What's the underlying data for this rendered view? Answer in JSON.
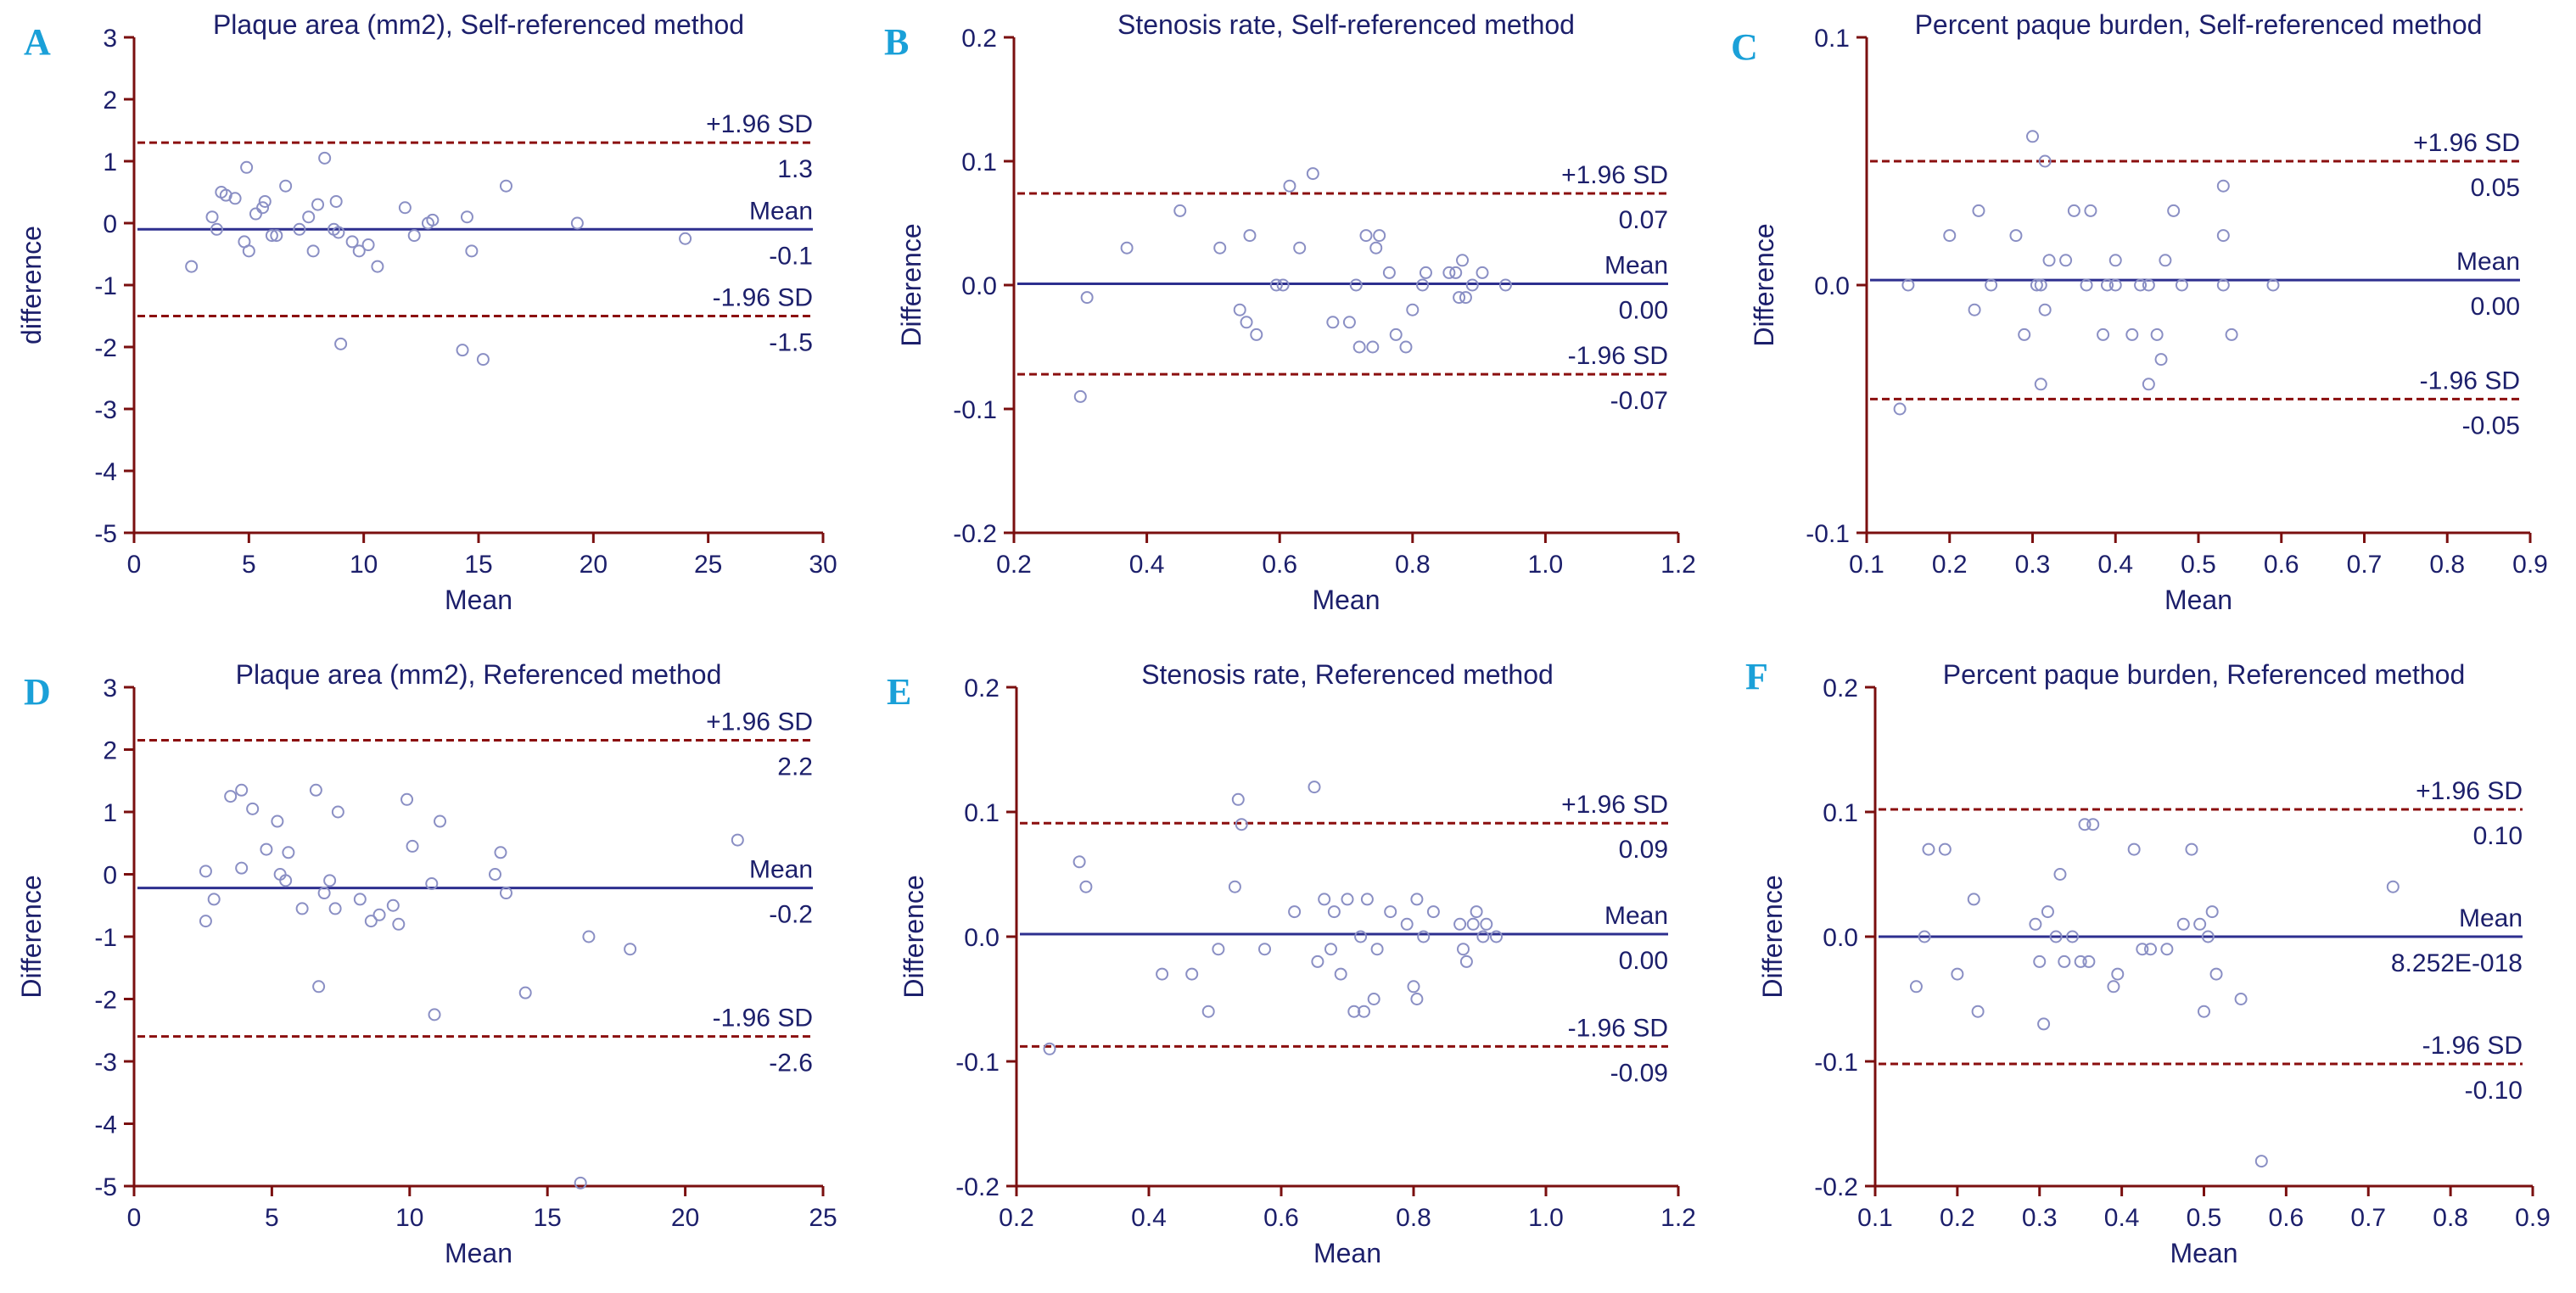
{
  "colors": {
    "axis": "#7a0f0f",
    "text": "#1c1f6b",
    "mean_line": "#2d2f8f",
    "sd_line": "#8b0f0f",
    "point": "#8a8fc4",
    "panel_label": "#1aa0d8"
  },
  "chart_data": [
    {
      "id": "A",
      "type": "scatter",
      "panel_label": "A",
      "title": "Plaque area (mm2), Self-referenced method",
      "xlabel": "Mean",
      "ylabel": "difference",
      "xlim": [
        0,
        30
      ],
      "ylim": [
        -5,
        3
      ],
      "xticks": [
        0,
        5,
        10,
        15,
        20,
        25,
        30
      ],
      "yticks": [
        -5,
        -4,
        -3,
        -2,
        -1,
        0,
        1,
        2,
        3
      ],
      "xtick_labels": [
        "0",
        "5",
        "10",
        "15",
        "20",
        "25",
        "30"
      ],
      "ytick_labels": [
        "-5",
        "-4",
        "-3",
        "-2",
        "-1",
        "0",
        "1",
        "2",
        "3"
      ],
      "lines": [
        {
          "kind": "upper",
          "y": 1.3,
          "name": "+1.96 SD",
          "value_label": "1.3"
        },
        {
          "kind": "mean",
          "y": -0.1,
          "name": "Mean",
          "value_label": "-0.1"
        },
        {
          "kind": "lower",
          "y": -1.5,
          "name": "-1.96 SD",
          "value_label": "-1.5"
        }
      ],
      "points": [
        [
          2.5,
          -0.7
        ],
        [
          3.4,
          0.1
        ],
        [
          3.6,
          -0.1
        ],
        [
          3.8,
          0.5
        ],
        [
          4.0,
          0.45
        ],
        [
          4.4,
          0.4
        ],
        [
          4.8,
          -0.3
        ],
        [
          4.9,
          0.9
        ],
        [
          5.0,
          -0.45
        ],
        [
          5.3,
          0.15
        ],
        [
          5.6,
          0.25
        ],
        [
          5.7,
          0.35
        ],
        [
          6.0,
          -0.2
        ],
        [
          6.2,
          -0.2
        ],
        [
          6.6,
          0.6
        ],
        [
          7.2,
          -0.1
        ],
        [
          7.6,
          0.1
        ],
        [
          7.8,
          -0.45
        ],
        [
          8.0,
          0.3
        ],
        [
          8.3,
          1.05
        ],
        [
          8.7,
          -0.1
        ],
        [
          8.8,
          0.35
        ],
        [
          8.9,
          -0.15
        ],
        [
          9.0,
          -1.95
        ],
        [
          9.5,
          -0.3
        ],
        [
          9.8,
          -0.45
        ],
        [
          10.2,
          -0.35
        ],
        [
          10.6,
          -0.7
        ],
        [
          11.8,
          0.25
        ],
        [
          12.2,
          -0.2
        ],
        [
          12.8,
          0.0
        ],
        [
          13.0,
          0.05
        ],
        [
          14.3,
          -2.05
        ],
        [
          14.5,
          0.1
        ],
        [
          14.7,
          -0.45
        ],
        [
          15.2,
          -2.2
        ],
        [
          16.2,
          0.6
        ],
        [
          19.3,
          0.0
        ],
        [
          24.0,
          -0.25
        ]
      ]
    },
    {
      "id": "B",
      "type": "scatter",
      "panel_label": "B",
      "title": "Stenosis rate, Self-referenced method",
      "xlabel": "Mean",
      "ylabel": "Difference",
      "xlim": [
        0.2,
        1.2
      ],
      "ylim": [
        -0.2,
        0.2
      ],
      "xticks": [
        0.2,
        0.4,
        0.6,
        0.8,
        1.0,
        1.2
      ],
      "yticks": [
        -0.2,
        -0.1,
        0.0,
        0.1,
        0.2
      ],
      "xtick_labels": [
        "0.2",
        "0.4",
        "0.6",
        "0.8",
        "1.0",
        "1.2"
      ],
      "ytick_labels": [
        "-0.2",
        "-0.1",
        "0.0",
        "0.1",
        "0.2"
      ],
      "lines": [
        {
          "kind": "upper",
          "y": 0.074,
          "name": "+1.96 SD",
          "value_label": "0.07"
        },
        {
          "kind": "mean",
          "y": 0.001,
          "name": "Mean",
          "value_label": "0.00"
        },
        {
          "kind": "lower",
          "y": -0.072,
          "name": "-1.96 SD",
          "value_label": "-0.07"
        }
      ],
      "points": [
        [
          0.3,
          -0.09
        ],
        [
          0.31,
          -0.01
        ],
        [
          0.37,
          0.03
        ],
        [
          0.45,
          0.06
        ],
        [
          0.51,
          0.03
        ],
        [
          0.54,
          -0.02
        ],
        [
          0.55,
          -0.03
        ],
        [
          0.555,
          0.04
        ],
        [
          0.565,
          -0.04
        ],
        [
          0.595,
          0.0
        ],
        [
          0.605,
          0.0
        ],
        [
          0.615,
          0.08
        ],
        [
          0.63,
          0.03
        ],
        [
          0.65,
          0.09
        ],
        [
          0.68,
          -0.03
        ],
        [
          0.705,
          -0.03
        ],
        [
          0.715,
          0.0
        ],
        [
          0.72,
          -0.05
        ],
        [
          0.73,
          0.04
        ],
        [
          0.74,
          -0.05
        ],
        [
          0.745,
          0.03
        ],
        [
          0.75,
          0.04
        ],
        [
          0.765,
          0.01
        ],
        [
          0.775,
          -0.04
        ],
        [
          0.79,
          -0.05
        ],
        [
          0.8,
          -0.02
        ],
        [
          0.815,
          0.0
        ],
        [
          0.82,
          0.01
        ],
        [
          0.855,
          0.01
        ],
        [
          0.865,
          0.01
        ],
        [
          0.87,
          -0.01
        ],
        [
          0.875,
          0.02
        ],
        [
          0.88,
          -0.01
        ],
        [
          0.89,
          0.0
        ],
        [
          0.905,
          0.01
        ],
        [
          0.94,
          0.0
        ]
      ]
    },
    {
      "id": "C",
      "type": "scatter",
      "panel_label": "C",
      "title": "Percent paque burden, Self-referenced method",
      "xlabel": "Mean",
      "ylabel": "Difference",
      "xlim": [
        0.1,
        0.9
      ],
      "ylim": [
        -0.1,
        0.1
      ],
      "xticks": [
        0.1,
        0.2,
        0.3,
        0.4,
        0.5,
        0.6,
        0.7,
        0.8,
        0.9
      ],
      "yticks": [
        -0.1,
        0.0,
        0.1
      ],
      "xtick_labels": [
        "0.1",
        "0.2",
        "0.3",
        "0.4",
        "0.5",
        "0.6",
        "0.7",
        "0.8",
        "0.9"
      ],
      "ytick_labels": [
        "-0.1",
        "0.0",
        "0.1"
      ],
      "lines": [
        {
          "kind": "upper",
          "y": 0.05,
          "name": "+1.96 SD",
          "value_label": "0.05"
        },
        {
          "kind": "mean",
          "y": 0.002,
          "name": "Mean",
          "value_label": "0.00"
        },
        {
          "kind": "lower",
          "y": -0.046,
          "name": "-1.96 SD",
          "value_label": "-0.05"
        }
      ],
      "points": [
        [
          0.14,
          -0.05
        ],
        [
          0.15,
          0.0
        ],
        [
          0.2,
          0.02
        ],
        [
          0.23,
          -0.01
        ],
        [
          0.235,
          0.03
        ],
        [
          0.25,
          0.0
        ],
        [
          0.28,
          0.02
        ],
        [
          0.29,
          -0.02
        ],
        [
          0.3,
          0.06
        ],
        [
          0.305,
          0.0
        ],
        [
          0.31,
          -0.04
        ],
        [
          0.31,
          0.0
        ],
        [
          0.315,
          0.05
        ],
        [
          0.315,
          -0.01
        ],
        [
          0.32,
          0.01
        ],
        [
          0.34,
          0.01
        ],
        [
          0.35,
          0.03
        ],
        [
          0.365,
          0.0
        ],
        [
          0.37,
          0.03
        ],
        [
          0.385,
          -0.02
        ],
        [
          0.39,
          0.0
        ],
        [
          0.4,
          0.01
        ],
        [
          0.4,
          0.0
        ],
        [
          0.42,
          -0.02
        ],
        [
          0.43,
          0.0
        ],
        [
          0.44,
          0.0
        ],
        [
          0.44,
          -0.04
        ],
        [
          0.45,
          -0.02
        ],
        [
          0.455,
          -0.03
        ],
        [
          0.46,
          0.01
        ],
        [
          0.47,
          0.03
        ],
        [
          0.48,
          0.0
        ],
        [
          0.53,
          0.04
        ],
        [
          0.53,
          0.02
        ],
        [
          0.53,
          0.0
        ],
        [
          0.54,
          -0.02
        ],
        [
          0.59,
          0.0
        ]
      ]
    },
    {
      "id": "D",
      "type": "scatter",
      "panel_label": "D",
      "title": "Plaque area (mm2), Referenced method",
      "xlabel": "Mean",
      "ylabel": "Difference",
      "xlim": [
        0,
        25
      ],
      "ylim": [
        -5,
        3
      ],
      "xticks": [
        0,
        5,
        10,
        15,
        20,
        25
      ],
      "yticks": [
        -5,
        -4,
        -3,
        -2,
        -1,
        0,
        1,
        2,
        3
      ],
      "xtick_labels": [
        "0",
        "5",
        "10",
        "15",
        "20",
        "25"
      ],
      "ytick_labels": [
        "-5",
        "-4",
        "-3",
        "-2",
        "-1",
        "0",
        "1",
        "2",
        "3"
      ],
      "lines": [
        {
          "kind": "upper",
          "y": 2.15,
          "name": "+1.96 SD",
          "value_label": "2.2"
        },
        {
          "kind": "mean",
          "y": -0.22,
          "name": "Mean",
          "value_label": "-0.2"
        },
        {
          "kind": "lower",
          "y": -2.6,
          "name": "-1.96 SD",
          "value_label": "-2.6"
        }
      ],
      "points": [
        [
          2.6,
          0.05
        ],
        [
          2.6,
          -0.75
        ],
        [
          2.9,
          -0.4
        ],
        [
          3.5,
          1.25
        ],
        [
          3.9,
          1.35
        ],
        [
          3.9,
          0.1
        ],
        [
          4.3,
          1.05
        ],
        [
          4.8,
          0.4
        ],
        [
          5.2,
          0.85
        ],
        [
          5.3,
          0.0
        ],
        [
          5.5,
          -0.1
        ],
        [
          5.6,
          0.35
        ],
        [
          6.1,
          -0.55
        ],
        [
          6.6,
          1.35
        ],
        [
          6.7,
          -1.8
        ],
        [
          6.9,
          -0.3
        ],
        [
          7.1,
          -0.1
        ],
        [
          7.3,
          -0.55
        ],
        [
          7.4,
          1.0
        ],
        [
          8.2,
          -0.4
        ],
        [
          8.6,
          -0.75
        ],
        [
          8.9,
          -0.65
        ],
        [
          9.4,
          -0.5
        ],
        [
          9.6,
          -0.8
        ],
        [
          9.9,
          1.2
        ],
        [
          10.1,
          0.45
        ],
        [
          10.8,
          -0.15
        ],
        [
          10.9,
          -2.25
        ],
        [
          11.1,
          0.85
        ],
        [
          13.1,
          0.0
        ],
        [
          13.3,
          0.35
        ],
        [
          13.5,
          -0.3
        ],
        [
          14.2,
          -1.9
        ],
        [
          16.2,
          -4.95
        ],
        [
          16.5,
          -1.0
        ],
        [
          18.0,
          -1.2
        ],
        [
          21.9,
          0.55
        ]
      ]
    },
    {
      "id": "E",
      "type": "scatter",
      "panel_label": "E",
      "title": "Stenosis rate, Referenced method",
      "xlabel": "Mean",
      "ylabel": "Difference",
      "xlim": [
        0.2,
        1.2
      ],
      "ylim": [
        -0.2,
        0.2
      ],
      "xticks": [
        0.2,
        0.4,
        0.6,
        0.8,
        1.0,
        1.2
      ],
      "yticks": [
        -0.2,
        -0.1,
        0.0,
        0.1,
        0.2
      ],
      "xtick_labels": [
        "0.2",
        "0.4",
        "0.6",
        "0.8",
        "1.0",
        "1.2"
      ],
      "ytick_labels": [
        "-0.2",
        "-0.1",
        "0.0",
        "0.1",
        "0.2"
      ],
      "lines": [
        {
          "kind": "upper",
          "y": 0.091,
          "name": "+1.96 SD",
          "value_label": "0.09"
        },
        {
          "kind": "mean",
          "y": 0.002,
          "name": "Mean",
          "value_label": "0.00"
        },
        {
          "kind": "lower",
          "y": -0.088,
          "name": "-1.96 SD",
          "value_label": "-0.09"
        }
      ],
      "points": [
        [
          0.25,
          -0.09
        ],
        [
          0.295,
          0.06
        ],
        [
          0.305,
          0.04
        ],
        [
          0.42,
          -0.03
        ],
        [
          0.465,
          -0.03
        ],
        [
          0.49,
          -0.06
        ],
        [
          0.505,
          -0.01
        ],
        [
          0.53,
          0.04
        ],
        [
          0.535,
          0.11
        ],
        [
          0.54,
          0.09
        ],
        [
          0.575,
          -0.01
        ],
        [
          0.62,
          0.02
        ],
        [
          0.65,
          0.12
        ],
        [
          0.655,
          -0.02
        ],
        [
          0.665,
          0.03
        ],
        [
          0.675,
          -0.01
        ],
        [
          0.68,
          0.02
        ],
        [
          0.69,
          -0.03
        ],
        [
          0.7,
          0.03
        ],
        [
          0.71,
          -0.06
        ],
        [
          0.72,
          0.0
        ],
        [
          0.725,
          -0.06
        ],
        [
          0.73,
          0.03
        ],
        [
          0.74,
          -0.05
        ],
        [
          0.745,
          -0.01
        ],
        [
          0.765,
          0.02
        ],
        [
          0.79,
          0.01
        ],
        [
          0.8,
          -0.04
        ],
        [
          0.805,
          0.03
        ],
        [
          0.805,
          -0.05
        ],
        [
          0.815,
          0.0
        ],
        [
          0.83,
          0.02
        ],
        [
          0.87,
          0.01
        ],
        [
          0.875,
          -0.01
        ],
        [
          0.88,
          -0.02
        ],
        [
          0.89,
          0.01
        ],
        [
          0.895,
          0.02
        ],
        [
          0.905,
          0.0
        ],
        [
          0.91,
          0.01
        ],
        [
          0.925,
          0.0
        ]
      ]
    },
    {
      "id": "F",
      "type": "scatter",
      "panel_label": "F",
      "title": "Percent paque burden, Referenced method",
      "xlabel": "Mean",
      "ylabel": "Difference",
      "xlim": [
        0.1,
        0.9
      ],
      "ylim": [
        -0.2,
        0.2
      ],
      "xticks": [
        0.1,
        0.2,
        0.3,
        0.4,
        0.5,
        0.6,
        0.7,
        0.8,
        0.9
      ],
      "yticks": [
        -0.2,
        -0.1,
        0.0,
        0.1,
        0.2
      ],
      "xtick_labels": [
        "0.1",
        "0.2",
        "0.3",
        "0.4",
        "0.5",
        "0.6",
        "0.7",
        "0.8",
        "0.9"
      ],
      "ytick_labels": [
        "-0.2",
        "-0.1",
        "0.0",
        "0.1",
        "0.2"
      ],
      "lines": [
        {
          "kind": "upper",
          "y": 0.102,
          "name": "+1.96 SD",
          "value_label": "0.10"
        },
        {
          "kind": "mean",
          "y": 0.0,
          "name": "Mean",
          "value_label": "8.252E-018"
        },
        {
          "kind": "lower",
          "y": -0.102,
          "name": "-1.96 SD",
          "value_label": "-0.10"
        }
      ],
      "points": [
        [
          0.15,
          -0.04
        ],
        [
          0.16,
          0.0
        ],
        [
          0.165,
          0.07
        ],
        [
          0.185,
          0.07
        ],
        [
          0.2,
          -0.03
        ],
        [
          0.22,
          0.03
        ],
        [
          0.225,
          -0.06
        ],
        [
          0.295,
          0.01
        ],
        [
          0.3,
          -0.02
        ],
        [
          0.305,
          -0.07
        ],
        [
          0.31,
          0.02
        ],
        [
          0.32,
          0.0
        ],
        [
          0.325,
          0.05
        ],
        [
          0.33,
          -0.02
        ],
        [
          0.34,
          0.0
        ],
        [
          0.35,
          -0.02
        ],
        [
          0.355,
          0.09
        ],
        [
          0.36,
          -0.02
        ],
        [
          0.365,
          0.09
        ],
        [
          0.39,
          -0.04
        ],
        [
          0.395,
          -0.03
        ],
        [
          0.415,
          0.07
        ],
        [
          0.425,
          -0.01
        ],
        [
          0.435,
          -0.01
        ],
        [
          0.455,
          -0.01
        ],
        [
          0.475,
          0.01
        ],
        [
          0.485,
          0.07
        ],
        [
          0.495,
          0.01
        ],
        [
          0.5,
          -0.06
        ],
        [
          0.505,
          0.0
        ],
        [
          0.51,
          0.02
        ],
        [
          0.515,
          -0.03
        ],
        [
          0.545,
          -0.05
        ],
        [
          0.57,
          -0.18
        ],
        [
          0.73,
          0.04
        ]
      ]
    }
  ]
}
